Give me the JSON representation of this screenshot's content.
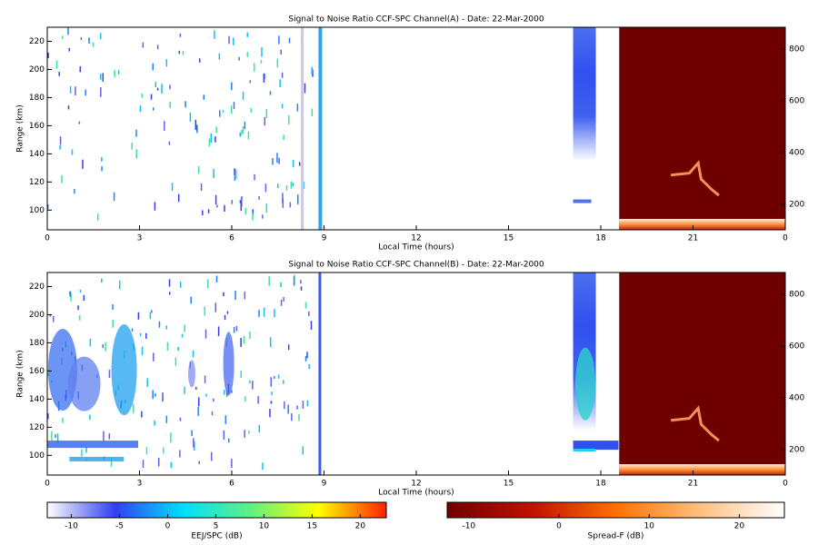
{
  "chart_data": [
    {
      "type": "heatmap",
      "title": "Signal to Noise Ratio CCF-SPC Channel(A) - Date: 22-Mar-2000",
      "xlabel": "Local Time (hours)",
      "ylabel": "Range (km)",
      "xlim": [
        0,
        24
      ],
      "xticks": [
        0,
        3,
        6,
        9,
        12,
        15,
        18,
        21,
        {
          "value": 24,
          "label": "0"
        }
      ],
      "ylim": [
        86,
        230
      ],
      "yticks": [
        100,
        120,
        140,
        160,
        180,
        200,
        220
      ],
      "y2lim": [
        102,
        884
      ],
      "y2ticks": [
        200,
        400,
        600,
        800
      ]
    },
    {
      "type": "heatmap",
      "title": "Signal to Noise Ratio CCF-SPC Channel(B) - Date: 22-Mar-2000",
      "xlabel": "Local Time (hours)",
      "ylabel": "Range (km)",
      "xlim": [
        0,
        24
      ],
      "xticks": [
        0,
        3,
        6,
        9,
        12,
        15,
        18,
        21,
        {
          "value": 24,
          "label": "0"
        }
      ],
      "ylim": [
        86,
        230
      ],
      "yticks": [
        100,
        120,
        140,
        160,
        180,
        200,
        220
      ],
      "y2lim": [
        102,
        884
      ],
      "y2ticks": [
        200,
        400,
        600,
        800
      ]
    }
  ],
  "colorbars": [
    {
      "label": "EEJ/SPC (dB)",
      "lim": [
        -12.5,
        22.7
      ],
      "ticks": [
        -10,
        -5,
        0,
        5,
        10,
        15,
        20
      ],
      "colors": [
        "#ffffff",
        "#3040f0",
        "#00e0ff",
        "#60f080",
        "#ffff00",
        "#ff2000"
      ]
    },
    {
      "label": "Spread-F (dB)",
      "lim": [
        -12.4,
        25
      ],
      "ticks": [
        -10,
        0,
        10,
        20
      ],
      "colors": [
        "#700000",
        "#c01000",
        "#ff7000",
        "#ffc080",
        "#ffffff"
      ]
    }
  ]
}
